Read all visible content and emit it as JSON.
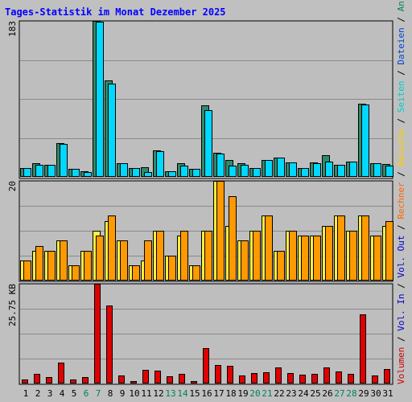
{
  "title": "Tages-Statistik im Monat Dezember 2025",
  "right_legend": [
    {
      "text": "Volumen",
      "color": "#cc0000"
    },
    {
      "text": " / ",
      "color": "#000000"
    },
    {
      "text": "Vol. In",
      "color": "#0000cc"
    },
    {
      "text": " / ",
      "color": "#000000"
    },
    {
      "text": "Vol. Out",
      "color": "#0000cc"
    },
    {
      "text": " / ",
      "color": "#000000"
    },
    {
      "text": "Rechner",
      "color": "#ff6600"
    },
    {
      "text": " / ",
      "color": "#000000"
    },
    {
      "text": "Besuche",
      "color": "#ffcc00"
    },
    {
      "text": " / ",
      "color": "#000000"
    },
    {
      "text": "Seiten",
      "color": "#00cccc"
    },
    {
      "text": " / ",
      "color": "#000000"
    },
    {
      "text": "Dateien",
      "color": "#0044cc"
    },
    {
      "text": " / ",
      "color": "#000000"
    },
    {
      "text": "Anfragen",
      "color": "#008060"
    }
  ],
  "colors": {
    "anfragen": "#2e8b6a",
    "seiten": "#00d8ff",
    "besuche": "#ffee40",
    "rechner": "#ff9900",
    "volumen": "#e00000",
    "weekday_label": "#000000",
    "weekend_label": "#008060"
  },
  "chart_data": [
    {
      "type": "bar",
      "name": "anfragen-dateien-seiten",
      "ymax_label": "183",
      "ylim": [
        0,
        183
      ],
      "categories": [
        "1",
        "2",
        "3",
        "4",
        "5",
        "6",
        "7",
        "8",
        "9",
        "10",
        "11",
        "12",
        "13",
        "14",
        "15",
        "16",
        "17",
        "18",
        "19",
        "20",
        "21",
        "22",
        "23",
        "24",
        "25",
        "26",
        "27",
        "28",
        "29",
        "30",
        "31"
      ],
      "weekend": [
        6,
        7,
        13,
        14,
        20,
        21,
        27,
        28
      ],
      "series": [
        {
          "name": "Anfragen",
          "values": [
            10,
            16,
            14,
            40,
            9,
            7,
            183,
            113,
            16,
            10,
            11,
            31,
            7,
            16,
            9,
            84,
            28,
            20,
            16,
            10,
            20,
            23,
            17,
            10,
            17,
            25,
            14,
            18,
            86,
            16,
            15
          ]
        },
        {
          "name": "Seiten",
          "values": [
            10,
            14,
            14,
            39,
            9,
            6,
            182,
            109,
            16,
            10,
            6,
            30,
            7,
            13,
            9,
            78,
            27,
            13,
            14,
            10,
            20,
            23,
            17,
            10,
            16,
            18,
            14,
            18,
            85,
            16,
            13
          ]
        }
      ]
    },
    {
      "type": "bar",
      "name": "besuche-rechner",
      "ymax_label": "20",
      "ylim": [
        0,
        20
      ],
      "series": [
        {
          "name": "Besuche",
          "values": [
            4,
            6,
            6,
            8,
            3,
            6,
            10,
            12,
            8,
            3,
            4,
            10,
            5,
            9,
            3,
            10,
            20,
            11,
            8,
            10,
            13,
            6,
            10,
            9,
            9,
            11,
            13,
            10,
            13,
            9,
            11
          ]
        },
        {
          "name": "Rechner",
          "values": [
            4,
            7,
            6,
            8,
            3,
            6,
            9,
            13,
            8,
            3,
            8,
            10,
            5,
            10,
            3,
            10,
            20,
            17,
            8,
            10,
            13,
            6,
            10,
            9,
            9,
            11,
            13,
            10,
            13,
            9,
            12
          ]
        }
      ]
    },
    {
      "type": "bar",
      "name": "volumen",
      "ymax_label": "25.75 KB",
      "ylim": [
        0,
        25.75
      ],
      "series": [
        {
          "name": "Volumen",
          "values": [
            1.0,
            2.5,
            1.7,
            5.5,
            1.0,
            1.6,
            25.75,
            20.2,
            2.1,
            0.6,
            3.5,
            3.3,
            1.8,
            2.5,
            0.6,
            9.2,
            4.8,
            4.5,
            2.1,
            2.6,
            3.0,
            4.2,
            2.6,
            2.2,
            2.5,
            4.2,
            3.1,
            2.5,
            17.8,
            2.1,
            3.8
          ]
        }
      ]
    }
  ]
}
